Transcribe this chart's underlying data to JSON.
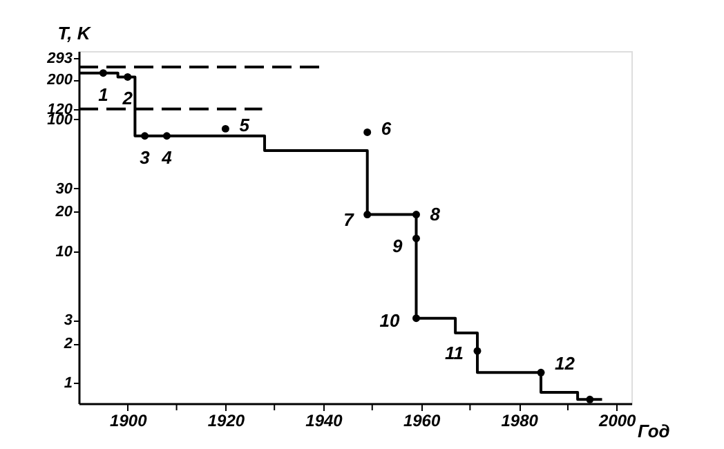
{
  "chart_data": {
    "type": "step",
    "xlabel": "Год",
    "ylabel": "T, K",
    "log": "y",
    "grid": false,
    "xlim": [
      1890,
      2003
    ],
    "ylim": [
      0.7,
      330
    ],
    "xticks": [
      1900,
      {
        "value": 1910,
        "label": null
      },
      1920,
      {
        "value": 1930,
        "label": null
      },
      1940,
      {
        "value": 1950,
        "label": null
      },
      1960,
      {
        "value": 1970,
        "label": null
      },
      1980,
      {
        "value": 1990,
        "label": null
      },
      2000
    ],
    "yticks": [
      1,
      2,
      3,
      10,
      20,
      30,
      100,
      120,
      200,
      293
    ],
    "series": [
      {
        "color": "#000000",
        "line_style": "solid",
        "marker": "none",
        "x": [
          1890,
          1898,
          1901.5,
          1928,
          1949,
          1959,
          1967,
          1971.5,
          1984.5,
          1992,
          1997
        ],
        "values": [
          225,
          210,
          75,
          58,
          19,
          3.1,
          2.4,
          1.2,
          0.85,
          0.75,
          0.75
        ]
      },
      {
        "type": "scatter",
        "color": "#000000",
        "marker": "circle",
        "x": [
          1895,
          1900,
          1903.5,
          1908,
          1920,
          1949,
          1949,
          1959,
          1959,
          1959,
          1971.5,
          1984.5,
          1994.5
        ],
        "values": [
          225,
          210,
          75,
          75,
          85,
          80,
          19,
          19,
          12.5,
          3.1,
          1.75,
          1.2,
          0.75
        ]
      },
      {
        "type": "line",
        "color": "#000000",
        "line_style": "dashed",
        "marker": "none",
        "x": [
          1890,
          1939.5
        ],
        "values": [
          250,
          250
        ]
      },
      {
        "type": "line",
        "color": "#000000",
        "line_style": "dashed",
        "marker": "none",
        "x": [
          1890,
          1927.5
        ],
        "values": [
          120,
          120
        ]
      }
    ],
    "annotations": [
      {
        "text": "1",
        "x": 1895,
        "y": 225
      },
      {
        "text": "2",
        "x": 1900,
        "y": 210
      },
      {
        "text": "3",
        "x": 1903.5,
        "y": 75
      },
      {
        "text": "4",
        "x": 1908,
        "y": 75
      },
      {
        "text": "5",
        "x": 1920,
        "y": 85
      },
      {
        "text": "6",
        "x": 1949,
        "y": 80
      },
      {
        "text": "7",
        "x": 1949,
        "y": 19
      },
      {
        "text": "8",
        "x": 1959,
        "y": 19
      },
      {
        "text": "9",
        "x": 1959,
        "y": 12.5
      },
      {
        "text": "10",
        "x": 1959,
        "y": 3.1
      },
      {
        "text": "11",
        "x": 1971.5,
        "y": 1.75
      },
      {
        "text": "12",
        "x": 1984.5,
        "y": 1.2
      }
    ]
  }
}
